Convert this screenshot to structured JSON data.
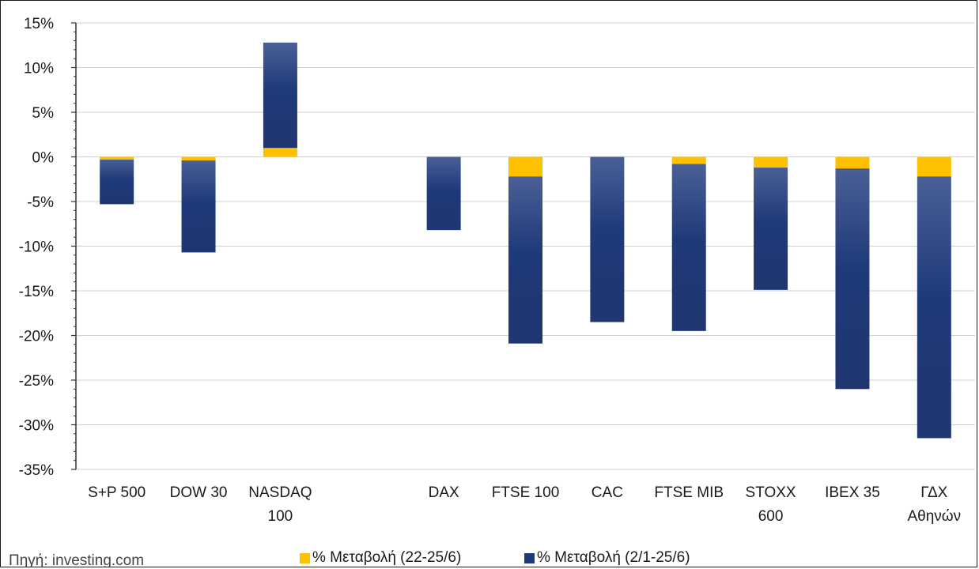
{
  "source_text": "Πηγή: investing.com",
  "chart_data": {
    "type": "bar",
    "stacked": true,
    "categories": [
      [
        "S+P 500"
      ],
      [
        "DOW 30"
      ],
      [
        "NASDAQ",
        "100"
      ],
      [
        ""
      ],
      [
        "DAX"
      ],
      [
        "FTSE 100"
      ],
      [
        "CAC"
      ],
      [
        "FTSE MIB"
      ],
      [
        "STOXX",
        "600"
      ],
      [
        "IBEX 35"
      ],
      [
        "ΓΔΧ",
        "Αθηνών"
      ]
    ],
    "series": [
      {
        "name": "% Μεταβολή (22-25/6)",
        "color": "#FFC000",
        "values": [
          -0.3,
          -0.4,
          1.0,
          null,
          0.0,
          -2.2,
          0.0,
          -0.8,
          -1.2,
          -1.3,
          -2.2
        ]
      },
      {
        "name": "% Μεταβολή (2/1-25/6)",
        "color": "#1F3A7A",
        "values": [
          -5.0,
          -10.3,
          11.8,
          null,
          -8.2,
          -18.7,
          -18.5,
          -18.7,
          -13.7,
          -24.7,
          -29.3
        ]
      }
    ],
    "ylim": [
      -35,
      15
    ],
    "yticks": [
      15,
      10,
      5,
      0,
      -5,
      -10,
      -15,
      -20,
      -25,
      -30,
      -35
    ],
    "ytick_suffix": "%",
    "grid": true,
    "legend_position": "bottom"
  }
}
